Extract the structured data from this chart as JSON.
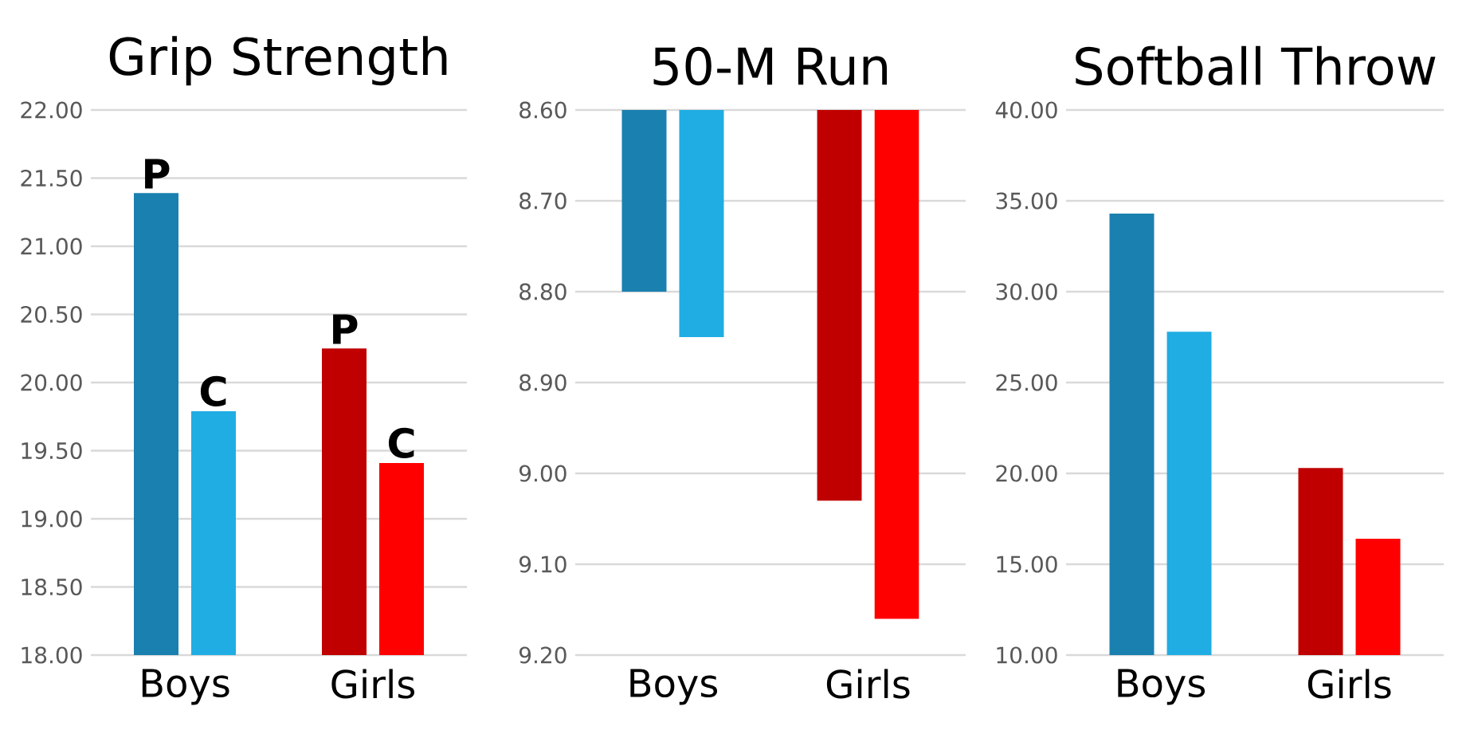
{
  "chart_data": [
    {
      "type": "bar",
      "title": "Grip Strength",
      "categories": [
        "Boys",
        "Girls"
      ],
      "ylim": [
        18,
        22
      ],
      "yticks": [
        {
          "value": 18,
          "label": "18.00"
        },
        {
          "value": 18.5,
          "label": "18.50"
        },
        {
          "value": 19,
          "label": "19.00"
        },
        {
          "value": 19.5,
          "label": "19.50"
        },
        {
          "value": 20,
          "label": "20.00"
        },
        {
          "value": 20.5,
          "label": "20.50"
        },
        {
          "value": 21,
          "label": "21.00"
        },
        {
          "value": 21.5,
          "label": "21.50"
        },
        {
          "value": 22,
          "label": "22.00"
        }
      ],
      "grid": "y",
      "series": [
        {
          "colors": [
            "#1a80b0",
            "#c00000"
          ],
          "values": [
            21.39,
            20.25
          ],
          "value_labels": [
            "P",
            "P"
          ]
        },
        {
          "colors": [
            "#20ade3",
            "#ff0000"
          ],
          "values": [
            19.79,
            19.41
          ],
          "value_labels": [
            "C",
            "C"
          ]
        }
      ]
    },
    {
      "type": "bar",
      "title": "50-M Run",
      "categories": [
        "Boys",
        "Girls"
      ],
      "ylim": [
        9.2,
        8.6
      ],
      "yticks": [
        {
          "value": 8.6,
          "label": "8.60"
        },
        {
          "value": 8.7,
          "label": "8.70"
        },
        {
          "value": 8.8,
          "label": "8.80"
        },
        {
          "value": 8.9,
          "label": "8.90"
        },
        {
          "value": 9.0,
          "label": "9.00"
        },
        {
          "value": 9.1,
          "label": "9.10"
        },
        {
          "value": 9.2,
          "label": "9.20"
        }
      ],
      "grid": "y",
      "series": [
        {
          "colors": [
            "#1a80b0",
            "#c00000"
          ],
          "values": [
            8.8,
            9.03
          ]
        },
        {
          "colors": [
            "#20ade3",
            "#ff0000"
          ],
          "values": [
            8.85,
            9.16
          ]
        }
      ]
    },
    {
      "type": "bar",
      "title": "Softball Throw",
      "categories": [
        "Boys",
        "Girls"
      ],
      "ylim": [
        10,
        40
      ],
      "yticks": [
        {
          "value": 10,
          "label": "10.00"
        },
        {
          "value": 15,
          "label": "15.00"
        },
        {
          "value": 20,
          "label": "20.00"
        },
        {
          "value": 25,
          "label": "25.00"
        },
        {
          "value": 30,
          "label": "30.00"
        },
        {
          "value": 35,
          "label": "35.00"
        },
        {
          "value": 40,
          "label": "40.00"
        }
      ],
      "grid": "y",
      "series": [
        {
          "colors": [
            "#1a80b0",
            "#c00000"
          ],
          "values": [
            34.3,
            20.3
          ]
        },
        {
          "colors": [
            "#20ade3",
            "#ff0000"
          ],
          "values": [
            27.8,
            16.4
          ]
        }
      ]
    }
  ]
}
